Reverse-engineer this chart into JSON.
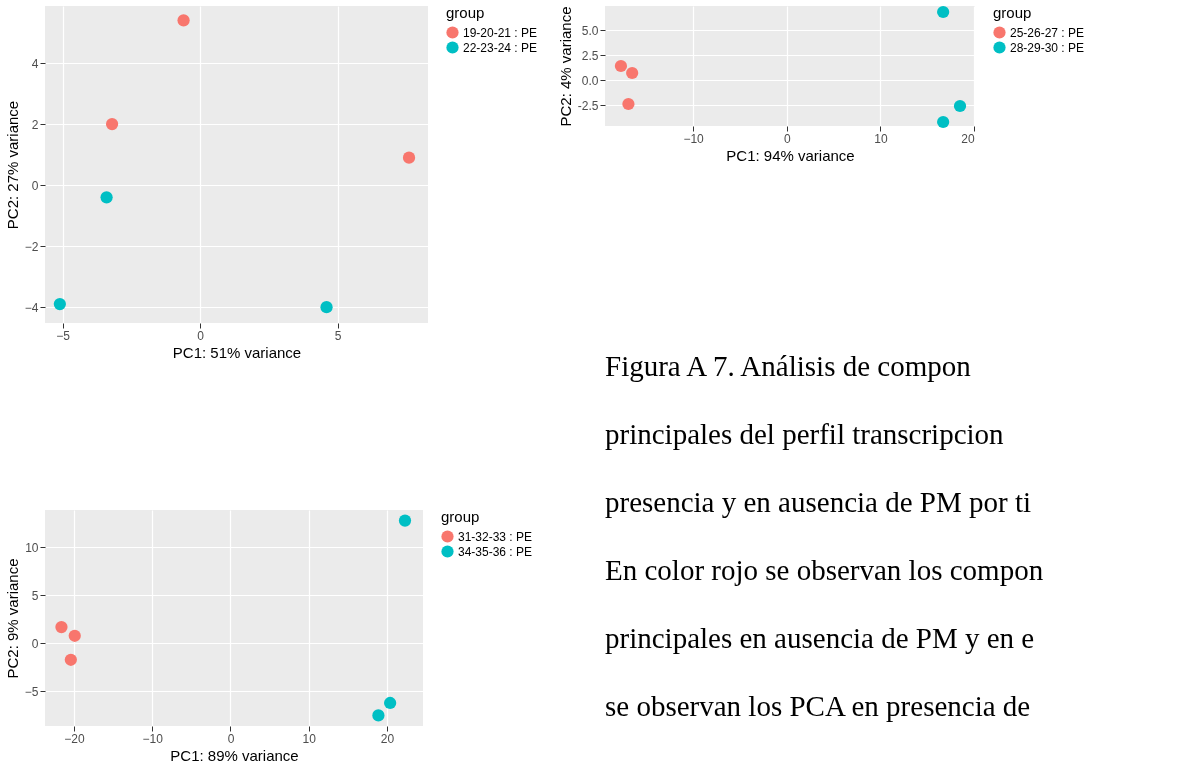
{
  "chart_data": [
    {
      "type": "scatter",
      "xlabel": "PC1: 51% variance",
      "ylabel": "PC2: 27% variance",
      "legend_title": "group",
      "legend": "right",
      "grid": true,
      "marker": "circle",
      "xlim": [
        -5.64,
        8.29
      ],
      "ylim": [
        -4.52,
        5.87
      ],
      "xticks": [
        -5,
        0,
        5
      ],
      "yticks": [
        -4,
        -2,
        0,
        2,
        4
      ],
      "series": [
        {
          "name": "19-20-21 : PE",
          "color": "#f8766d",
          "x": [
            -0.6,
            -3.2,
            7.6
          ],
          "values": [
            5.4,
            2.0,
            0.9
          ]
        },
        {
          "name": "22-23-24 : PE",
          "color": "#00bfc4",
          "x": [
            -3.4,
            -5.1,
            4.6
          ],
          "values": [
            -0.4,
            -3.9,
            -4.0
          ]
        }
      ]
    },
    {
      "type": "scatter",
      "xlabel": "PC1: 94% variance",
      "ylabel": "PC2: 4% variance",
      "legend_title": "group",
      "legend": "right",
      "grid": true,
      "marker": "circle",
      "xlim": [
        -19.4,
        20.1
      ],
      "ylim": [
        -4.6,
        7.4
      ],
      "xticks": [
        -10,
        0,
        10,
        20
      ],
      "yticks": [
        {
          "value": -2.5,
          "label": "-2.5"
        },
        {
          "value": 0,
          "label": "0.0"
        },
        {
          "value": 2.5,
          "label": "2.5"
        },
        {
          "value": 5,
          "label": "5.0"
        }
      ],
      "series": [
        {
          "name": "25-26-27 : PE",
          "color": "#f8766d",
          "x": [
            -17.7,
            -16.5,
            -16.9
          ],
          "values": [
            1.4,
            0.7,
            -2.4
          ]
        },
        {
          "name": "28-29-30 : PE",
          "color": "#00bfc4",
          "x": [
            16.7,
            18.5,
            16.7
          ],
          "values": [
            6.8,
            -2.6,
            -4.2
          ]
        }
      ]
    },
    {
      "type": "scatter",
      "xlabel": "PC1: 89% variance",
      "ylabel": "PC2: 9% variance",
      "legend_title": "group",
      "legend": "right",
      "grid": true,
      "marker": "circle",
      "xlim": [
        -23.7,
        24.6
      ],
      "ylim": [
        -8.6,
        13.9
      ],
      "xticks": [
        -20,
        -10,
        0,
        10,
        20
      ],
      "yticks": [
        -5,
        0,
        5,
        10
      ],
      "series": [
        {
          "name": "31-32-33 : PE",
          "color": "#f8766d",
          "x": [
            -21.6,
            -19.9,
            -20.4
          ],
          "values": [
            1.7,
            0.8,
            -1.7
          ]
        },
        {
          "name": "34-35-36 : PE",
          "color": "#00bfc4",
          "x": [
            22.3,
            20.4,
            18.9
          ],
          "values": [
            12.8,
            -6.2,
            -7.5
          ]
        }
      ]
    },
    {
      "type": "other",
      "annotations": [
        "Figura A 7. Análisis de compon",
        "principales del perfil transcripcion",
        "presencia y en ausencia de PM por ti",
        "En color rojo se observan los compon",
        "principales en ausencia de PM y en e",
        "se observan los PCA en presencia de"
      ]
    }
  ]
}
